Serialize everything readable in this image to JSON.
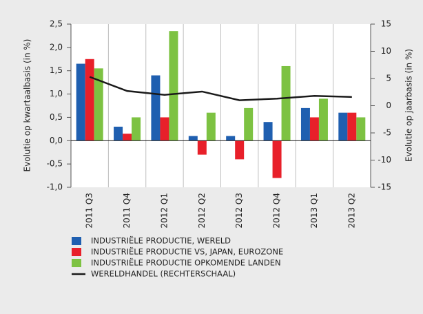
{
  "chart_data": {
    "type": "bar",
    "y_label": "Evolutie op kwartaalbasis (in %)",
    "y2_label": "Evolutie op jaarbasis (in %)",
    "categories": [
      "2011 Q3",
      "2011 Q4",
      "2012 Q1",
      "2012 Q2",
      "2012 Q3",
      "2012 Q4",
      "2013 Q1",
      "2013 Q2"
    ],
    "series": [
      {
        "name": "INDUSTRIËLE PRODUCTIE, WERELD",
        "color": "#1f5fb0",
        "values": [
          1.65,
          0.3,
          1.4,
          0.1,
          0.1,
          0.4,
          0.7,
          0.6
        ]
      },
      {
        "name": "INDUSTRIËLE PRODUCTIE VS, JAPAN, EUROZONE",
        "color": "#e8202a",
        "values": [
          1.75,
          0.15,
          0.5,
          -0.3,
          -0.4,
          -0.8,
          0.5,
          0.6
        ]
      },
      {
        "name": "INDUSTRIËLE PRODUCTIE OPKOMENDE LANDEN",
        "color": "#7dc242",
        "values": [
          1.55,
          0.5,
          2.35,
          0.6,
          0.7,
          1.6,
          0.9,
          0.5
        ]
      },
      {
        "name": "WERELDHANDEL (RECHTERSCHAAL)",
        "color": "#1a1a1a",
        "type": "line",
        "axis": "y2",
        "values": [
          5.3,
          2.7,
          2.0,
          2.6,
          1.0,
          1.3,
          1.8,
          1.6
        ]
      }
    ],
    "ylim": [
      -1,
      2.5
    ],
    "yticks": [
      {
        "value": -1,
        "label": "-1,0"
      },
      {
        "value": -0.5,
        "label": "-0,5"
      },
      {
        "value": 0,
        "label": "0,0"
      },
      {
        "value": 0.5,
        "label": "0,5"
      },
      {
        "value": 1,
        "label": "1,0"
      },
      {
        "value": 1.5,
        "label": "1,5"
      },
      {
        "value": 2,
        "label": "2,0"
      },
      {
        "value": 2.5,
        "label": "2,5"
      }
    ],
    "y2lim": [
      -15,
      15
    ],
    "y2ticks": [
      -15,
      -10,
      -5,
      0,
      5,
      10,
      15
    ],
    "legend": "bottom-left"
  }
}
